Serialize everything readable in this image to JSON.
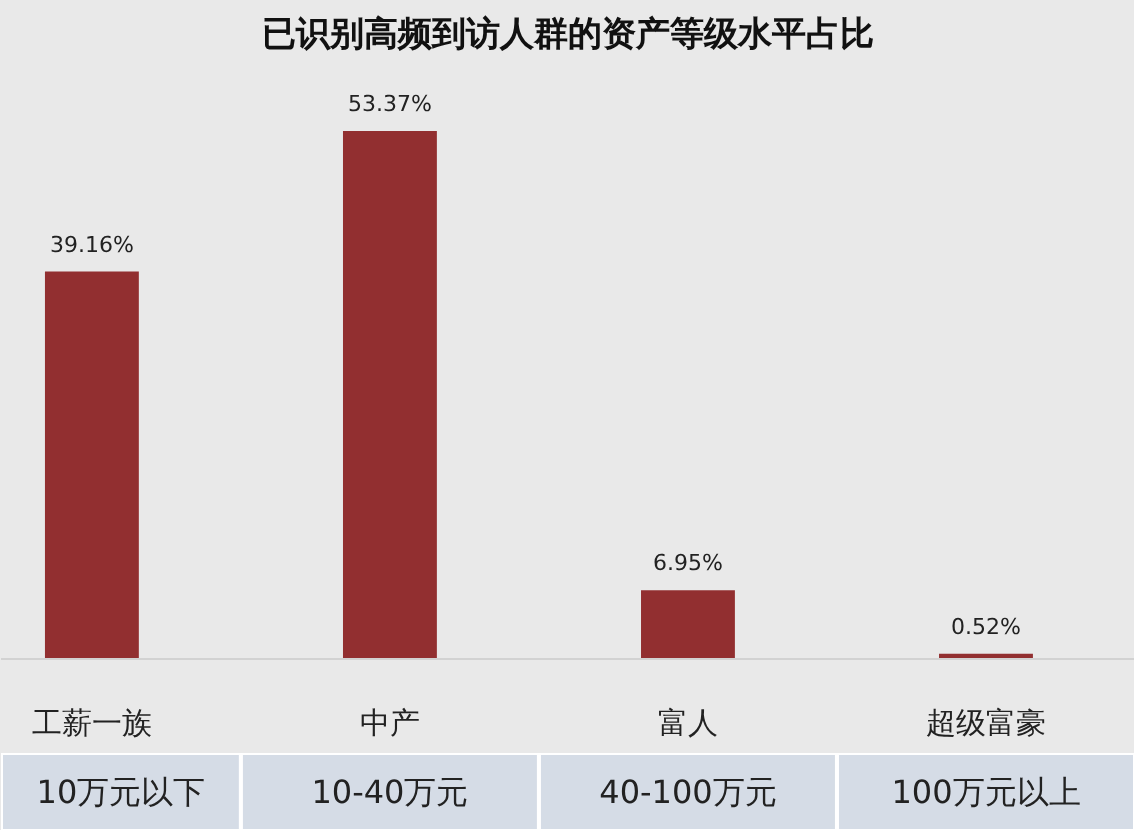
{
  "chart_data": {
    "type": "bar",
    "title": "已识别高频到访人群的资产等级水平占比",
    "categories": [
      "工薪一族\n10万元以下",
      "中产\n10-40万元",
      "富人\n40-100万元",
      "超级富豪\n100万元以上"
    ],
    "values": [
      39.16,
      53.37,
      6.95,
      0.52
    ],
    "color": "#922f30",
    "value_labels": [
      "39.16%",
      "53.37%",
      "6.95%",
      "0.52%"
    ],
    "tick_labels": "x"
  }
}
